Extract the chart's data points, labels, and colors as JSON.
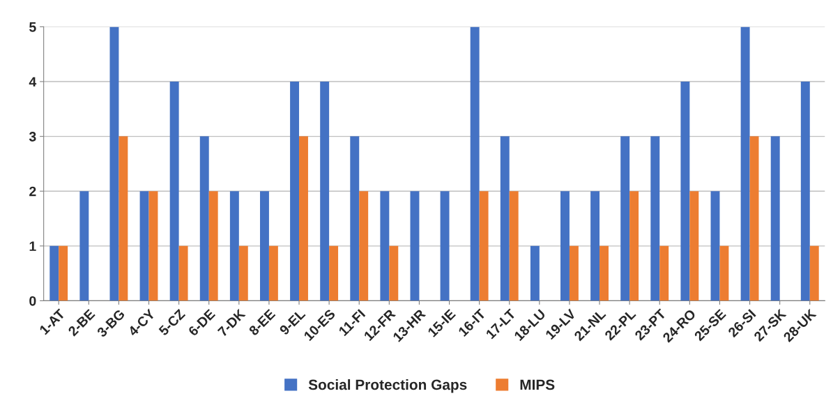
{
  "chart_data": {
    "type": "bar",
    "categories": [
      "1-AT",
      "2-BE",
      "3-BG",
      "4-CY",
      "5-CZ",
      "6-DE",
      "7-DK",
      "8-EE",
      "9-EL",
      "10-ES",
      "11-FI",
      "12-FR",
      "13-HR",
      "15-IE",
      "16-IT",
      "17-LT",
      "18-LU",
      "19-LV",
      "21-NL",
      "22-PL",
      "23-PT",
      "24-RO",
      "25-SE",
      "26-SI",
      "27-SK",
      "28-UK"
    ],
    "series": [
      {
        "name": "Social Protection Gaps",
        "color": "#4472c4",
        "values": [
          1,
          2,
          5,
          2,
          4,
          3,
          2,
          2,
          4,
          4,
          3,
          2,
          2,
          2,
          5,
          3,
          1,
          2,
          2,
          3,
          3,
          4,
          2,
          5,
          3,
          4
        ]
      },
      {
        "name": "MIPS",
        "color": "#ed7d31",
        "values": [
          1,
          0,
          3,
          2,
          1,
          2,
          1,
          1,
          3,
          1,
          2,
          1,
          0,
          0,
          2,
          2,
          0,
          1,
          1,
          2,
          1,
          2,
          1,
          3,
          0,
          1
        ]
      }
    ],
    "ylim": [
      0,
      5
    ],
    "yticks": [
      0,
      1,
      2,
      3,
      4,
      5
    ],
    "grid": "y",
    "legend": "bottom"
  }
}
